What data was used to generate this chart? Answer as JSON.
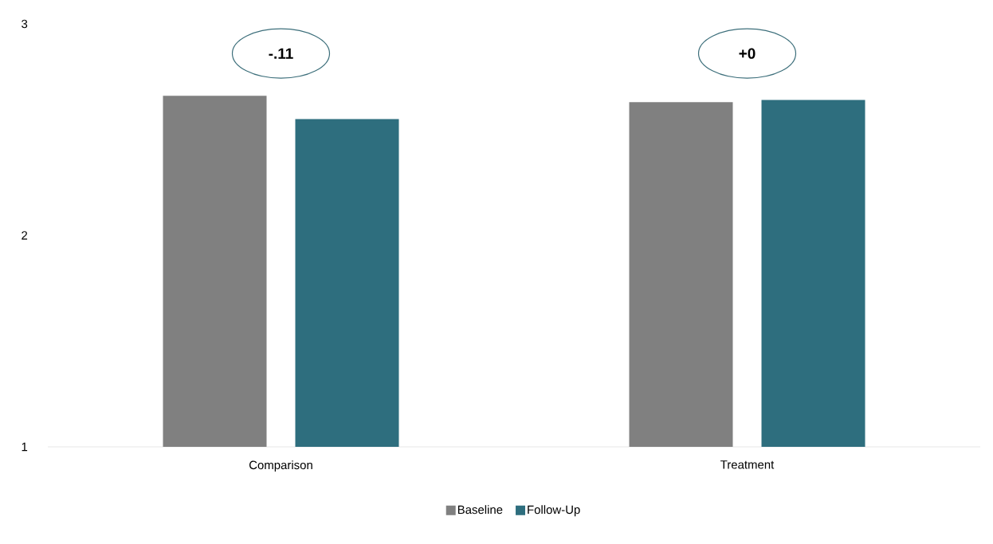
{
  "chart_data": {
    "type": "bar",
    "categories": [
      "Comparison",
      "Treatment"
    ],
    "series": [
      {
        "name": "Baseline",
        "color": "#808080",
        "values": [
          2.66,
          2.63
        ]
      },
      {
        "name": "Follow-Up",
        "color": "#2e6e7e",
        "values": [
          2.55,
          2.64
        ]
      }
    ],
    "ylim": [
      1,
      3
    ],
    "yticks": [
      1,
      2,
      3
    ],
    "legend": "bottom",
    "annotations": [
      "-.11",
      "+0"
    ]
  }
}
